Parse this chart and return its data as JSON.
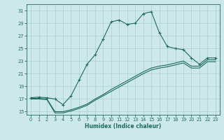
{
  "xlabel": "Humidex (Indice chaleur)",
  "xlim": [
    -0.5,
    23.5
  ],
  "ylim": [
    14.5,
    32.0
  ],
  "xticks": [
    0,
    1,
    2,
    3,
    4,
    5,
    6,
    7,
    8,
    9,
    10,
    11,
    12,
    13,
    14,
    15,
    16,
    17,
    18,
    19,
    20,
    21,
    22,
    23
  ],
  "yticks": [
    15,
    17,
    19,
    21,
    23,
    25,
    27,
    29,
    31
  ],
  "bg_color": "#cde8e8",
  "grid_color": "#a8d0d0",
  "line_color": "#1e6b5e",
  "curve_main_x": [
    0,
    1,
    2,
    3,
    4,
    5,
    6,
    7,
    8,
    9,
    10,
    11,
    12,
    13,
    14,
    15,
    16,
    17,
    18,
    19,
    20,
    21,
    22,
    23
  ],
  "curve_main_y": [
    17.2,
    17.3,
    17.2,
    17.0,
    16.1,
    17.5,
    20.0,
    22.5,
    24.0,
    26.5,
    29.2,
    29.5,
    28.8,
    29.0,
    30.5,
    30.8,
    27.5,
    25.3,
    25.0,
    24.8,
    23.5,
    22.5,
    23.5,
    23.5
  ],
  "curve_line1_x": [
    0,
    1,
    2,
    3,
    4,
    5,
    6,
    7,
    8,
    9,
    10,
    11,
    12,
    13,
    14,
    15,
    16,
    17,
    18,
    19,
    20,
    21,
    22,
    23
  ],
  "curve_line1_y": [
    17.1,
    17.1,
    17.0,
    15.0,
    15.0,
    15.3,
    15.7,
    16.2,
    17.0,
    17.7,
    18.5,
    19.2,
    19.9,
    20.6,
    21.3,
    21.9,
    22.2,
    22.4,
    22.7,
    23.0,
    22.2,
    22.2,
    23.2,
    23.2
  ],
  "curve_line2_x": [
    0,
    1,
    2,
    3,
    4,
    5,
    6,
    7,
    8,
    9,
    10,
    11,
    12,
    13,
    14,
    15,
    16,
    17,
    18,
    19,
    20,
    21,
    22,
    23
  ],
  "curve_line2_y": [
    17.0,
    17.0,
    16.9,
    14.8,
    14.8,
    15.1,
    15.5,
    16.0,
    16.8,
    17.5,
    18.2,
    18.9,
    19.6,
    20.3,
    21.0,
    21.6,
    21.9,
    22.1,
    22.4,
    22.7,
    21.9,
    21.9,
    22.9,
    22.9
  ]
}
